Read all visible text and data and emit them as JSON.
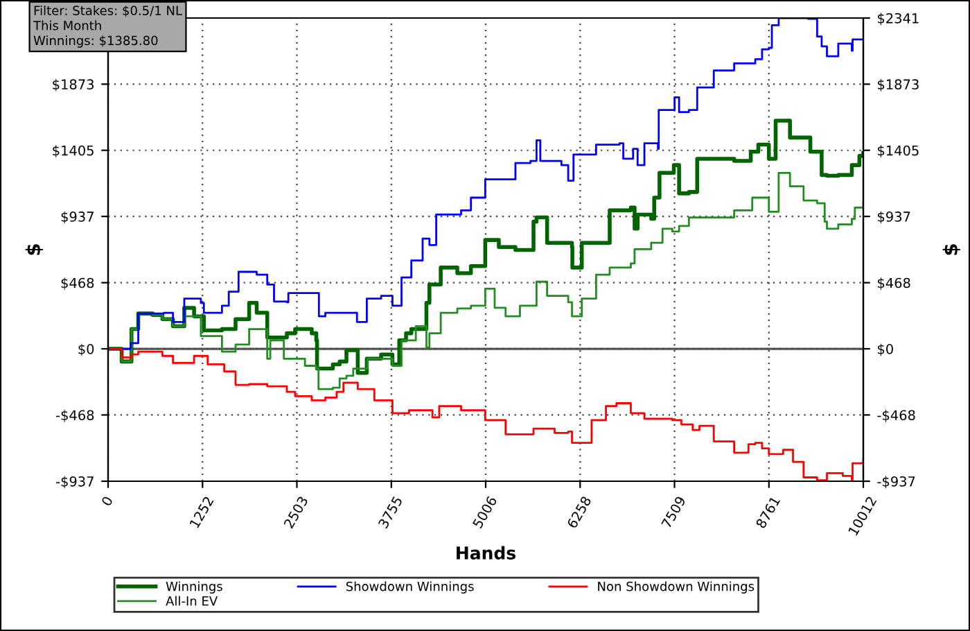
{
  "chart_data": {
    "type": "step",
    "xlabel": "Hands",
    "ylabel": "$",
    "y2label": "$",
    "annotations": [
      "Filter: Stakes: $0.5/1 NL",
      "This Month",
      "Winnings: $1385.80"
    ],
    "series": [
      {
        "name": "Winnings",
        "color": "#006400",
        "x": [
          0,
          180,
          310,
          400,
          590,
          720,
          860,
          1010,
          1140,
          1270,
          1510,
          1690,
          1870,
          1970,
          2110,
          2370,
          2480,
          2700,
          2760,
          2770,
          2980,
          3070,
          3160,
          3290,
          3310,
          3430,
          3620,
          3770,
          3860,
          3950,
          4020,
          4220,
          4260,
          4410,
          4630,
          4810,
          5000,
          5180,
          5400,
          5640,
          5680,
          5820,
          6150,
          6155,
          6280,
          6650,
          6930,
          6980,
          7020,
          7200,
          7240,
          7310,
          7500,
          7570,
          7700,
          7810,
          8030,
          8300,
          8520,
          8620,
          8760,
          8850,
          9040,
          9310,
          9400,
          9460,
          9530,
          9680,
          9860,
          9960,
          10012
        ],
        "values": [
          0,
          -90,
          140,
          250,
          240,
          210,
          160,
          290,
          230,
          130,
          140,
          210,
          325,
          255,
          80,
          110,
          140,
          110,
          60,
          -140,
          -110,
          -90,
          -10,
          -10,
          -170,
          -70,
          -40,
          -110,
          60,
          110,
          140,
          325,
          455,
          575,
          535,
          585,
          770,
          720,
          700,
          900,
          930,
          750,
          720,
          575,
          750,
          980,
          1000,
          850,
          950,
          920,
          1070,
          1245,
          1300,
          1100,
          1110,
          1345,
          1345,
          1330,
          1395,
          1445,
          1345,
          1615,
          1495,
          1395,
          1395,
          1230,
          1225,
          1230,
          1300,
          1365,
          1385
        ]
      },
      {
        "name": "All-In EV",
        "color": "#228b22",
        "x": [
          0,
          180,
          310,
          400,
          590,
          720,
          860,
          1010,
          1230,
          1510,
          1690,
          1870,
          2110,
          2150,
          2330,
          2610,
          2760,
          2790,
          2980,
          3070,
          3160,
          3250,
          3440,
          3770,
          3890,
          4080,
          4220,
          4260,
          4410,
          4630,
          4810,
          5000,
          5125,
          5270,
          5460,
          5680,
          5820,
          6100,
          6150,
          6280,
          6470,
          6650,
          6930,
          6980,
          7200,
          7350,
          7480,
          7570,
          7700,
          7940,
          8300,
          8540,
          8670,
          8760,
          8890,
          9040,
          9220,
          9400,
          9500,
          9530,
          9680,
          9860,
          9900,
          10012
        ],
        "values": [
          0,
          -90,
          140,
          250,
          240,
          210,
          160,
          230,
          90,
          -20,
          30,
          140,
          -70,
          60,
          -70,
          -120,
          -140,
          -285,
          -275,
          -210,
          -190,
          -140,
          -70,
          -120,
          60,
          160,
          10,
          110,
          255,
          285,
          305,
          425,
          290,
          230,
          305,
          475,
          375,
          330,
          230,
          355,
          525,
          575,
          605,
          705,
          750,
          850,
          830,
          870,
          930,
          930,
          980,
          1070,
          1070,
          970,
          1245,
          1150,
          1050,
          1030,
          900,
          850,
          880,
          920,
          1000,
          1040
        ]
      },
      {
        "name": "Showdown Winnings",
        "color": "#0000ff",
        "x": [
          0,
          300,
          400,
          740,
          860,
          1010,
          1230,
          1270,
          1510,
          1600,
          1730,
          1970,
          2110,
          2200,
          2370,
          2390,
          2790,
          2795,
          2880,
          3070,
          3300,
          3430,
          3620,
          3770,
          3890,
          4020,
          4170,
          4260,
          4350,
          4680,
          4810,
          5000,
          5400,
          5600,
          5680,
          5730,
          6010,
          6100,
          6170,
          6470,
          6780,
          6830,
          6960,
          7020,
          7110,
          7290,
          7300,
          7510,
          7570,
          7700,
          7810,
          8030,
          8300,
          8580,
          8670,
          8760,
          8800,
          8890,
          9280,
          9400,
          9460,
          9530,
          9680,
          9860,
          9870,
          10012
        ],
        "values": [
          0,
          40,
          250,
          255,
          190,
          355,
          325,
          255,
          305,
          405,
          545,
          525,
          455,
          335,
          330,
          395,
          395,
          230,
          255,
          255,
          190,
          355,
          375,
          305,
          505,
          625,
          780,
          735,
          950,
          980,
          1070,
          1200,
          1315,
          1330,
          1475,
          1330,
          1300,
          1190,
          1375,
          1445,
          1455,
          1345,
          1415,
          1300,
          1455,
          1415,
          1690,
          1780,
          1675,
          1690,
          1850,
          1970,
          2020,
          2050,
          2120,
          2130,
          2290,
          2340,
          2335,
          2210,
          2140,
          2070,
          2160,
          2110,
          2190,
          2190
        ]
      },
      {
        "name": "Non Showdown Winnings",
        "color": "#ff0000",
        "x": [
          0,
          180,
          310,
          400,
          550,
          720,
          860,
          1140,
          1320,
          1540,
          1690,
          1870,
          2110,
          2370,
          2480,
          2700,
          2880,
          3030,
          3120,
          3310,
          3530,
          3770,
          3990,
          4300,
          4390,
          4680,
          5000,
          5270,
          5640,
          5920,
          6100,
          6150,
          6410,
          6600,
          6740,
          6930,
          7110,
          7480,
          7600,
          7750,
          7840,
          8030,
          8300,
          8490,
          8580,
          8670,
          8760,
          8950,
          9080,
          9220,
          9400,
          9500,
          9530,
          9740,
          9860,
          9870,
          10012
        ],
        "values": [
          0,
          -60,
          -40,
          -20,
          -20,
          -50,
          -100,
          -50,
          -110,
          -160,
          -255,
          -250,
          -265,
          -305,
          -335,
          -365,
          -345,
          -305,
          -240,
          -285,
          -365,
          -455,
          -435,
          -485,
          -405,
          -435,
          -505,
          -605,
          -565,
          -595,
          -585,
          -665,
          -505,
          -405,
          -385,
          -455,
          -495,
          -505,
          -535,
          -575,
          -545,
          -655,
          -735,
          -675,
          -665,
          -705,
          -745,
          -715,
          -800,
          -910,
          -930,
          -930,
          -880,
          -900,
          -930,
          -810,
          -780
        ]
      }
    ],
    "xlim": [
      0,
      10012
    ],
    "xticks": [
      0,
      1252,
      2503,
      3755,
      5006,
      6258,
      7509,
      8761,
      10012
    ],
    "ylim": [
      -937,
      2341
    ],
    "yticks": [
      {
        "value": -937,
        "label": "-$937"
      },
      {
        "value": -468,
        "label": "-$468"
      },
      {
        "value": 0,
        "label": "$0"
      },
      {
        "value": 468,
        "label": "$468"
      },
      {
        "value": 937,
        "label": "$937"
      },
      {
        "value": 1405,
        "label": "$1405"
      },
      {
        "value": 1873,
        "label": "$1873"
      }
    ],
    "y2lim": [
      -937,
      2341
    ],
    "y2ticks": [
      {
        "value": -937,
        "label": "-$937"
      },
      {
        "value": -468,
        "label": "-$468"
      },
      {
        "value": 0,
        "label": "$0"
      },
      {
        "value": 468,
        "label": "$468"
      },
      {
        "value": 937,
        "label": "$937"
      },
      {
        "value": 1405,
        "label": "$1405"
      },
      {
        "value": 1873,
        "label": "$1873"
      },
      {
        "value": 2341,
        "label": "$2341"
      }
    ],
    "ref_lines": [
      {
        "axis": "y",
        "value": 0,
        "color": "#555555"
      }
    ],
    "grid": true,
    "legend": "bottom",
    "line_style": "solid",
    "marker": "none"
  }
}
